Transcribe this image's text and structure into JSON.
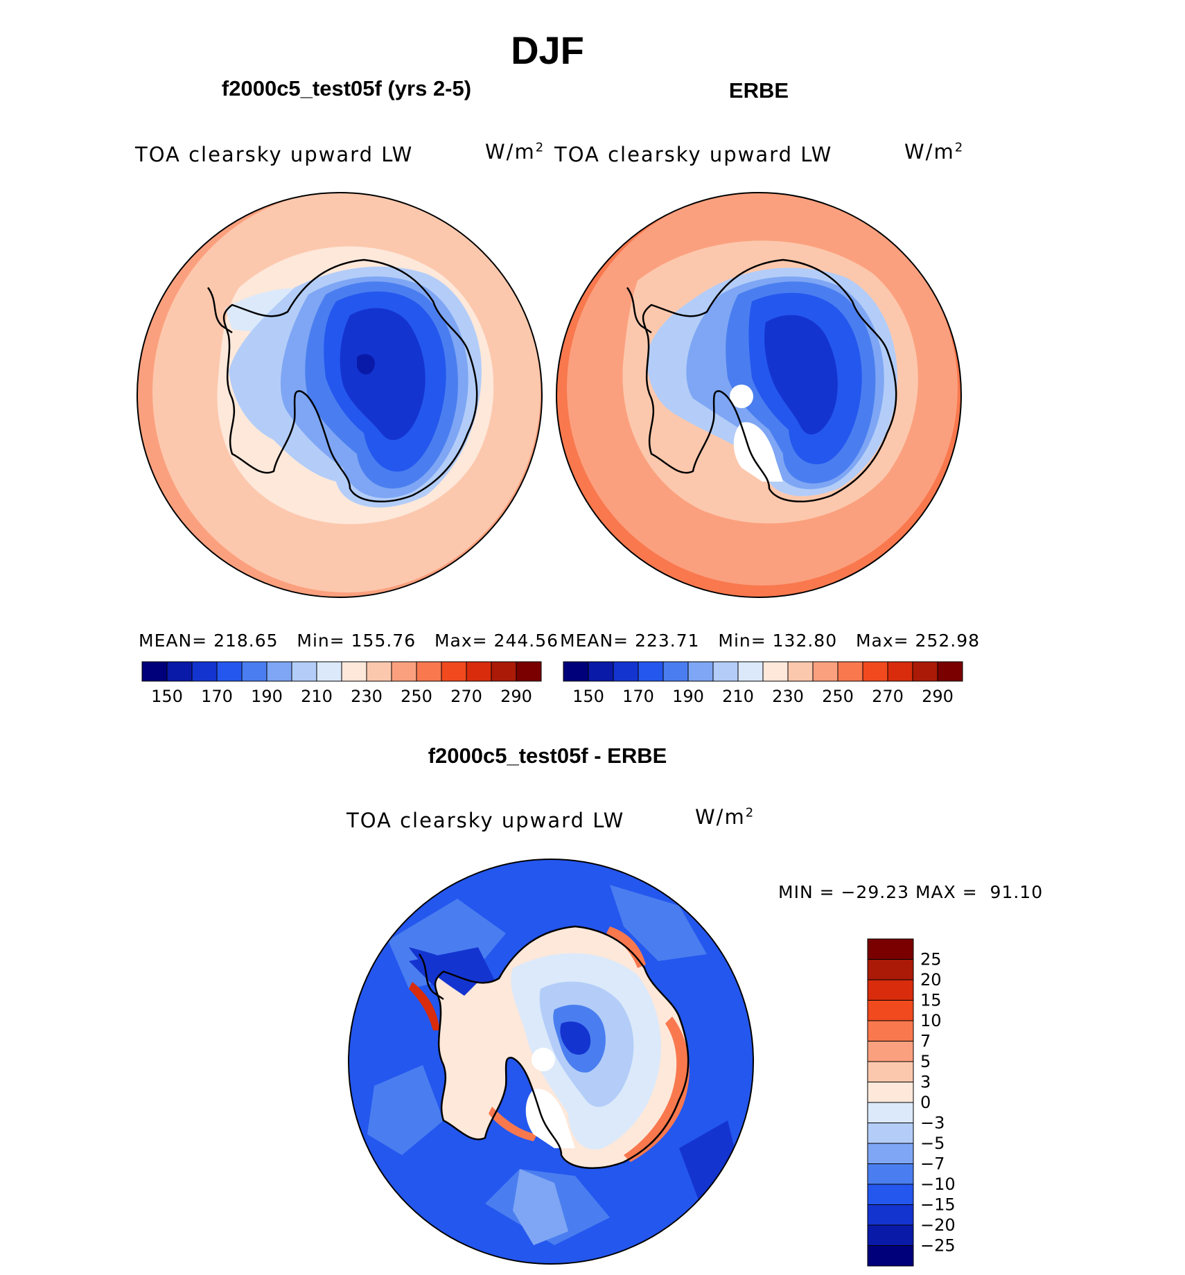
{
  "figure": {
    "season": "DJF"
  },
  "panels": {
    "model": {
      "title": "f2000c5_test05f (yrs 2-5)",
      "variable": "TOA clearsky upward LW",
      "units": "W/m",
      "units_sup": "2",
      "stats": {
        "mean": "MEAN= 218.65",
        "min": "Min= 155.76",
        "max": "Max= 244.56"
      }
    },
    "obs": {
      "title": "ERBE",
      "variable": "TOA clearsky upward LW",
      "units": "W/m",
      "units_sup": "2",
      "stats": {
        "mean": "MEAN= 223.71",
        "min": "Min= 132.80",
        "max": "Max= 252.98"
      }
    },
    "diff": {
      "title": "f2000c5_test05f - ERBE",
      "variable": "TOA clearsky upward LW",
      "units": "W/m",
      "units_sup": "2",
      "minmax": "MIN = −29.23 MAX =  91.10"
    }
  },
  "colorbar_abs": {
    "tick_labels": [
      "150",
      "170",
      "190",
      "210",
      "230",
      "250",
      "270",
      "290"
    ],
    "colors": [
      "#00007a",
      "#0a1aa8",
      "#1434d0",
      "#2457ee",
      "#4a7ef0",
      "#7ea6f4",
      "#b3cdf8",
      "#dbe9fa",
      "#fde8da",
      "#fcc8ad",
      "#fba07e",
      "#f9784e",
      "#f04a1e",
      "#d82c0c",
      "#aa1a06",
      "#7a0000"
    ]
  },
  "colorbar_diff": {
    "levels": [
      "25",
      "20",
      "15",
      "10",
      "7",
      "5",
      "3",
      "0",
      "−3",
      "−5",
      "−7",
      "−10",
      "−15",
      "−20",
      "−25"
    ],
    "colors": [
      "#7a0000",
      "#aa1a06",
      "#d82c0c",
      "#f04a1e",
      "#f9784e",
      "#fba07e",
      "#fcc8ad",
      "#fde8da",
      "#dbe9fa",
      "#b3cdf8",
      "#7ea6f4",
      "#4a7ef0",
      "#2457ee",
      "#1434d0",
      "#0a1aa8",
      "#00007a"
    ]
  },
  "map_colors": {
    "ocean_model": "#fcc8ad",
    "ocean_model_inner": "#fde8da",
    "ocean_model_outer": "#fba07e",
    "ocean_obs": "#fba07e",
    "ocean_obs_inner": "#fcc8ad",
    "ocean_obs_outer": "#f9784e",
    "ice_shelf": "#dbe9fa",
    "land_1": "#b3cdf8",
    "land_2": "#7ea6f4",
    "land_3": "#4a7ef0",
    "land_4": "#2457ee",
    "land_5": "#1434d0",
    "diff_ocean": "#2457ee",
    "diff_ocean_2": "#4a7ef0",
    "diff_ocean_3": "#1434d0",
    "diff_land_1": "#fde8da",
    "diff_land_2": "#dbe9fa",
    "diff_land_3": "#b3cdf8",
    "diff_warm": "#f9784e",
    "diff_hot": "#d82c0c",
    "missing": "#ffffff"
  }
}
